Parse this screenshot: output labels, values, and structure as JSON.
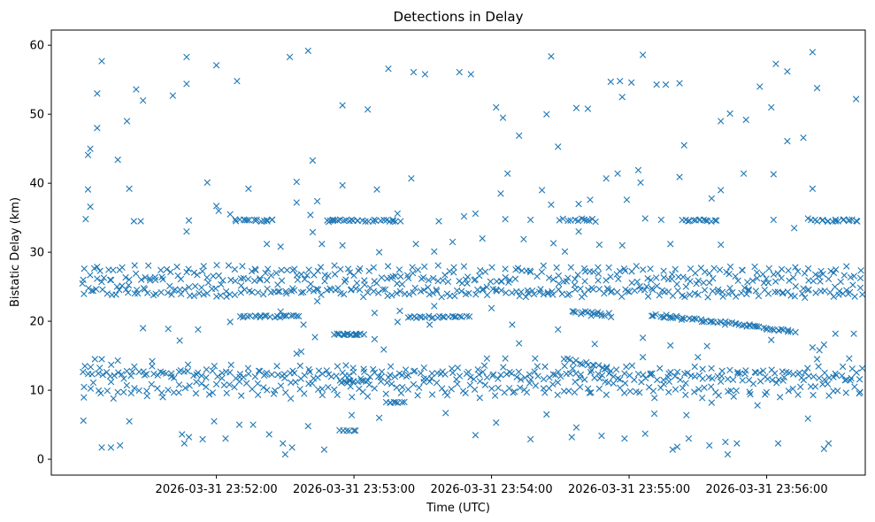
{
  "chart_data": {
    "type": "scatter",
    "title": "Detections in Delay",
    "xlabel": "Time (UTC)",
    "ylabel": "Bistatic Delay (km)",
    "marker": "x",
    "marker_color": "#1f77b4",
    "time_start": "2026-03-31 23:51:02",
    "time_end": "2026-03-31 23:56:23",
    "xlim_seconds_from_235100": [
      -12,
      343
    ],
    "ylim": [
      -2.3,
      62.2
    ],
    "x_ticks_seconds_from_235100": [
      60,
      120,
      180,
      240,
      300
    ],
    "x_tick_labels": [
      "2026-03-31 23:52:00",
      "2026-03-31 23:53:00",
      "2026-03-31 23:54:00",
      "2026-03-31 23:55:00",
      "2026-03-31 23:56:00"
    ],
    "y_ticks": [
      0,
      10,
      20,
      30,
      40,
      50,
      60
    ],
    "y_tick_labels": [
      "0",
      "10",
      "20",
      "30",
      "40",
      "50",
      "60"
    ],
    "bands": [
      {
        "name": "upper-dense-1",
        "x_start": 2,
        "x_end": 341,
        "y_start": 24.2,
        "y_end": 24.0,
        "points": 170,
        "spread": 0.6
      },
      {
        "name": "upper-dense-2",
        "x_start": 2,
        "x_end": 341,
        "y_start": 26.8,
        "y_end": 26.5,
        "points": 150,
        "spread": 0.9
      },
      {
        "name": "upper-dense-3",
        "x_start": 2,
        "x_end": 341,
        "y_start": 25.4,
        "y_end": 25.2,
        "points": 120,
        "spread": 1.1
      },
      {
        "name": "upper-edge",
        "x_start": 2,
        "x_end": 341,
        "y_start": 27.8,
        "y_end": 27.6,
        "points": 60,
        "spread": 0.4
      },
      {
        "name": "lower-dense-1",
        "x_start": 2,
        "x_end": 341,
        "y_start": 12.3,
        "y_end": 12.0,
        "points": 170,
        "spread": 0.6
      },
      {
        "name": "lower-dense-2",
        "x_start": 2,
        "x_end": 341,
        "y_start": 10.5,
        "y_end": 10.6,
        "points": 140,
        "spread": 0.9
      },
      {
        "name": "lower-dense-3",
        "x_start": 2,
        "x_end": 341,
        "y_start": 13.1,
        "y_end": 12.8,
        "points": 90,
        "spread": 0.7
      },
      {
        "name": "lower-edge",
        "x_start": 2,
        "x_end": 341,
        "y_start": 9.2,
        "y_end": 9.4,
        "points": 50,
        "spread": 0.5
      },
      {
        "name": "diag-20",
        "x_start": 250,
        "x_end": 312,
        "y_start": 20.9,
        "y_end": 18.6,
        "points": 60,
        "spread": 0.25
      },
      {
        "name": "track-20-a",
        "x_start": 70,
        "x_end": 96,
        "y_start": 20.7,
        "y_end": 20.7,
        "points": 22,
        "spread": 0.15
      },
      {
        "name": "track-20-b",
        "x_start": 144,
        "x_end": 170,
        "y_start": 20.6,
        "y_end": 20.6,
        "points": 22,
        "spread": 0.15
      },
      {
        "name": "track-20-c",
        "x_start": 215,
        "x_end": 232,
        "y_start": 21.3,
        "y_end": 20.9,
        "points": 16,
        "spread": 0.3
      },
      {
        "name": "track-18",
        "x_start": 112,
        "x_end": 124,
        "y_start": 18.1,
        "y_end": 18.1,
        "points": 18,
        "spread": 0.1
      },
      {
        "name": "track-34-a",
        "x_start": 68,
        "x_end": 85,
        "y_start": 34.6,
        "y_end": 34.6,
        "points": 16,
        "spread": 0.15
      },
      {
        "name": "track-34-b",
        "x_start": 108,
        "x_end": 122,
        "y_start": 34.6,
        "y_end": 34.6,
        "points": 14,
        "spread": 0.15
      },
      {
        "name": "track-34-c",
        "x_start": 124,
        "x_end": 140,
        "y_start": 34.6,
        "y_end": 34.6,
        "points": 14,
        "spread": 0.15
      },
      {
        "name": "track-34-d",
        "x_start": 210,
        "x_end": 226,
        "y_start": 34.8,
        "y_end": 34.6,
        "points": 12,
        "spread": 0.2
      },
      {
        "name": "track-34-e",
        "x_start": 263,
        "x_end": 278,
        "y_start": 34.6,
        "y_end": 34.6,
        "points": 14,
        "spread": 0.15
      },
      {
        "name": "track-34-f",
        "x_start": 320,
        "x_end": 340,
        "y_start": 34.6,
        "y_end": 34.6,
        "points": 18,
        "spread": 0.15
      },
      {
        "name": "track-11-a",
        "x_start": 114,
        "x_end": 126,
        "y_start": 11.3,
        "y_end": 11.3,
        "points": 12,
        "spread": 0.15
      },
      {
        "name": "track-14",
        "x_start": 212,
        "x_end": 232,
        "y_start": 14.4,
        "y_end": 13.0,
        "points": 16,
        "spread": 0.3
      },
      {
        "name": "track-8",
        "x_start": 134,
        "x_end": 142,
        "y_start": 8.2,
        "y_end": 8.2,
        "points": 8,
        "spread": 0.1
      },
      {
        "name": "track-4",
        "x_start": 113,
        "x_end": 121,
        "y_start": 4.2,
        "y_end": 4.2,
        "points": 6,
        "spread": 0.1
      }
    ],
    "scatter_points": [
      [
        10,
        57.7
      ],
      [
        47,
        58.3
      ],
      [
        60,
        57.1
      ],
      [
        92,
        58.3
      ],
      [
        100,
        59.2
      ],
      [
        135,
        56.6
      ],
      [
        146,
        56.1
      ],
      [
        151,
        55.8
      ],
      [
        166,
        56.1
      ],
      [
        171,
        55.8
      ],
      [
        206,
        58.4
      ],
      [
        232,
        54.7
      ],
      [
        236,
        54.8
      ],
      [
        241,
        54.6
      ],
      [
        246,
        58.6
      ],
      [
        252,
        54.3
      ],
      [
        256,
        54.3
      ],
      [
        262,
        54.5
      ],
      [
        297,
        54.0
      ],
      [
        304,
        57.3
      ],
      [
        309,
        56.2
      ],
      [
        320,
        59.0
      ],
      [
        322,
        53.8
      ],
      [
        339,
        52.2
      ],
      [
        4,
        44.1
      ],
      [
        5,
        45.0
      ],
      [
        8,
        53.0
      ],
      [
        25,
        53.6
      ],
      [
        28,
        52.0
      ],
      [
        41,
        52.7
      ],
      [
        47,
        54.4
      ],
      [
        69,
        54.8
      ],
      [
        115,
        51.3
      ],
      [
        126,
        50.7
      ],
      [
        182,
        51.0
      ],
      [
        185,
        49.5
      ],
      [
        204,
        50.0
      ],
      [
        217,
        50.9
      ],
      [
        222,
        50.8
      ],
      [
        237,
        52.5
      ],
      [
        280,
        49.0
      ],
      [
        284,
        50.1
      ],
      [
        291,
        49.2
      ],
      [
        302,
        51.0
      ],
      [
        192,
        46.9
      ],
      [
        209,
        45.3
      ],
      [
        235,
        41.4
      ],
      [
        244,
        41.9
      ],
      [
        264,
        45.5
      ],
      [
        290,
        41.4
      ],
      [
        309,
        46.1
      ],
      [
        316,
        46.6
      ],
      [
        8,
        48.0
      ],
      [
        21,
        49.0
      ],
      [
        4,
        39.1
      ],
      [
        17,
        43.4
      ],
      [
        22,
        39.2
      ],
      [
        56,
        40.1
      ],
      [
        74,
        39.2
      ],
      [
        95,
        40.2
      ],
      [
        102,
        43.3
      ],
      [
        115,
        39.7
      ],
      [
        130,
        39.1
      ],
      [
        145,
        40.7
      ],
      [
        184,
        38.5
      ],
      [
        187,
        41.4
      ],
      [
        202,
        39.0
      ],
      [
        230,
        40.7
      ],
      [
        239,
        37.6
      ],
      [
        245,
        40.1
      ],
      [
        262,
        40.9
      ],
      [
        276,
        37.8
      ],
      [
        280,
        39.0
      ],
      [
        303,
        41.3
      ],
      [
        320,
        39.2
      ],
      [
        5,
        36.6
      ],
      [
        3,
        34.8
      ],
      [
        24,
        34.5
      ],
      [
        27,
        34.5
      ],
      [
        60,
        36.7
      ],
      [
        61,
        36.0
      ],
      [
        95,
        37.2
      ],
      [
        101,
        35.4
      ],
      [
        104,
        37.4
      ],
      [
        168,
        35.2
      ],
      [
        186,
        34.8
      ],
      [
        206,
        36.9
      ],
      [
        218,
        37.0
      ],
      [
        223,
        37.6
      ],
      [
        303,
        34.7
      ],
      [
        312,
        33.5
      ],
      [
        82,
        31.2
      ],
      [
        88,
        30.8
      ],
      [
        102,
        32.9
      ],
      [
        106,
        31.2
      ],
      [
        115,
        31.0
      ],
      [
        131,
        30.0
      ],
      [
        147,
        31.2
      ],
      [
        155,
        30.1
      ],
      [
        163,
        31.5
      ],
      [
        176,
        32.0
      ],
      [
        194,
        31.9
      ],
      [
        207,
        31.3
      ],
      [
        212,
        30.1
      ],
      [
        218,
        33.0
      ],
      [
        227,
        31.1
      ],
      [
        237,
        31.0
      ],
      [
        258,
        31.2
      ],
      [
        280,
        31.1
      ],
      [
        318,
        34.9
      ],
      [
        47,
        33.0
      ],
      [
        48,
        34.6
      ],
      [
        66,
        35.5
      ],
      [
        109,
        34.4
      ],
      [
        139,
        35.6
      ],
      [
        157,
        34.5
      ],
      [
        173,
        35.6
      ],
      [
        197,
        34.7
      ],
      [
        247,
        34.9
      ],
      [
        254,
        34.7
      ],
      [
        104,
        22.9
      ],
      [
        129,
        21.2
      ],
      [
        140,
        21.5
      ],
      [
        155,
        22.2
      ],
      [
        28,
        19.0
      ],
      [
        39,
        18.9
      ],
      [
        52,
        18.8
      ],
      [
        44,
        17.2
      ],
      [
        66,
        19.9
      ],
      [
        88,
        21.4
      ],
      [
        98,
        19.5
      ],
      [
        103,
        17.7
      ],
      [
        129,
        17.4
      ],
      [
        139,
        19.9
      ],
      [
        153,
        19.5
      ],
      [
        180,
        21.9
      ],
      [
        189,
        19.5
      ],
      [
        209,
        18.8
      ],
      [
        226,
        21.0
      ],
      [
        246,
        17.6
      ],
      [
        302,
        17.3
      ],
      [
        320,
        16.2
      ],
      [
        325,
        16.6
      ],
      [
        330,
        18.2
      ],
      [
        338,
        18.2
      ],
      [
        95,
        15.3
      ],
      [
        97,
        15.6
      ],
      [
        133,
        15.9
      ],
      [
        192,
        16.8
      ],
      [
        225,
        16.7
      ],
      [
        258,
        16.5
      ],
      [
        274,
        16.4
      ],
      [
        323,
        15.8
      ],
      [
        322,
        14.5
      ],
      [
        7,
        14.5
      ],
      [
        10,
        14.5
      ],
      [
        17,
        14.3
      ],
      [
        32,
        14.2
      ],
      [
        178,
        14.6
      ],
      [
        186,
        14.6
      ],
      [
        199,
        14.6
      ],
      [
        246,
        14.8
      ],
      [
        270,
        14.8
      ],
      [
        336,
        14.6
      ],
      [
        2,
        5.6
      ],
      [
        10,
        1.7
      ],
      [
        14,
        1.7
      ],
      [
        18,
        2.0
      ],
      [
        22,
        5.5
      ],
      [
        45,
        3.6
      ],
      [
        48,
        3.2
      ],
      [
        46,
        2.3
      ],
      [
        54,
        2.9
      ],
      [
        59,
        5.5
      ],
      [
        64,
        3.0
      ],
      [
        70,
        5.0
      ],
      [
        76,
        5.0
      ],
      [
        83,
        3.6
      ],
      [
        93,
        1.7
      ],
      [
        107,
        1.4
      ],
      [
        90,
        0.7
      ],
      [
        89,
        2.3
      ],
      [
        100,
        4.8
      ],
      [
        119,
        6.4
      ],
      [
        131,
        6.0
      ],
      [
        160,
        6.7
      ],
      [
        173,
        3.5
      ],
      [
        182,
        5.3
      ],
      [
        197,
        2.9
      ],
      [
        204,
        6.5
      ],
      [
        215,
        3.2
      ],
      [
        228,
        3.4
      ],
      [
        238,
        3.0
      ],
      [
        247,
        3.7
      ],
      [
        251,
        6.6
      ],
      [
        259,
        1.4
      ],
      [
        261,
        1.8
      ],
      [
        266,
        3.0
      ],
      [
        275,
        2.0
      ],
      [
        282,
        2.5
      ],
      [
        283,
        0.7
      ],
      [
        287,
        2.3
      ],
      [
        305,
        2.3
      ],
      [
        318,
        5.9
      ],
      [
        325,
        1.5
      ],
      [
        327,
        2.3
      ],
      [
        217,
        4.6
      ],
      [
        265,
        6.4
      ],
      [
        276,
        8.2
      ],
      [
        296,
        7.8
      ]
    ]
  }
}
